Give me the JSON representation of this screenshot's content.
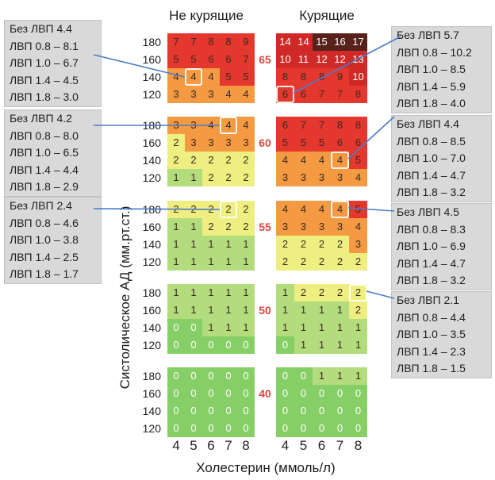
{
  "chart_data": {
    "type": "heatmap",
    "xlabel": "Холестерин (ммоль/л)",
    "ylabel": "Систолическое АД (мм.рт.ст.)",
    "x_ticks": [
      4,
      5,
      6,
      7,
      8
    ],
    "y_ticks": [
      180,
      160,
      140,
      120
    ],
    "ages": [
      65,
      60,
      55,
      50,
      40
    ],
    "color_scale": [
      {
        "min": 0,
        "max": 0,
        "color": "#86cf66"
      },
      {
        "min": 1,
        "max": 1,
        "color": "#b3dc7d"
      },
      {
        "min": 2,
        "max": 2,
        "color": "#eeef80"
      },
      {
        "min": 3,
        "max": 4,
        "color": "#f39a42"
      },
      {
        "min": 5,
        "max": 9,
        "color": "#e4372d"
      },
      {
        "min": 10,
        "max": 14,
        "color": "#cf2a27"
      },
      {
        "min": 15,
        "color": "#57211c"
      }
    ],
    "age_label_color": "#e2463b",
    "marker_color": "#ffffff",
    "connector_color": "#4a7cc7",
    "callout_fill": "#d9d9d9",
    "panels": [
      {
        "name": "Не курящие",
        "blocks": [
          [
            [
              7,
              7,
              8,
              8,
              9
            ],
            [
              5,
              5,
              6,
              6,
              7
            ],
            [
              4,
              4,
              4,
              5,
              5
            ],
            [
              3,
              3,
              3,
              4,
              4
            ]
          ],
          [
            [
              3,
              3,
              4,
              4,
              4
            ],
            [
              2,
              3,
              3,
              3,
              3
            ],
            [
              2,
              2,
              2,
              2,
              2
            ],
            [
              1,
              1,
              2,
              2,
              2
            ]
          ],
          [
            [
              2,
              2,
              2,
              2,
              2
            ],
            [
              1,
              1,
              2,
              2,
              2
            ],
            [
              1,
              1,
              1,
              1,
              1
            ],
            [
              1,
              1,
              1,
              1,
              1
            ]
          ],
          [
            [
              1,
              1,
              1,
              1,
              1
            ],
            [
              1,
              1,
              1,
              1,
              1
            ],
            [
              0,
              0,
              1,
              1,
              1
            ],
            [
              0,
              0,
              0,
              0,
              0
            ]
          ],
          [
            [
              0,
              0,
              0,
              0,
              0
            ],
            [
              0,
              0,
              0,
              0,
              0
            ],
            [
              0,
              0,
              0,
              0,
              0
            ],
            [
              0,
              0,
              0,
              0,
              0
            ]
          ]
        ],
        "callouts": [
          {
            "target": {
              "age": 65,
              "sbp": 140,
              "chol": 5
            },
            "lines": [
              "Без ЛВП 4.4",
              "ЛВП 0.8 – 8.1",
              "ЛВП 1.0 – 6.7",
              "ЛВП 1.4 – 4.5",
              "ЛВП 1.8 – 3.0"
            ]
          },
          {
            "target": {
              "age": 60,
              "sbp": 180,
              "chol": 7
            },
            "lines": [
              "Без ЛВП 4.2",
              "ЛВП 0.8 – 8.0",
              "ЛВП 1.0 – 6.5",
              "ЛВП 1.4 – 4.4",
              "ЛВП 1.8 – 2.9"
            ]
          },
          {
            "target": {
              "age": 55,
              "sbp": 180,
              "chol": 7
            },
            "lines": [
              "Без ЛВП 2.4",
              "ЛВП 0.8 – 4.6",
              "ЛВП 1.0 – 3.8",
              "ЛВП 1.4 – 2.5",
              "ЛВП 1.8 – 1.7"
            ]
          }
        ]
      },
      {
        "name": "Курящие",
        "blocks": [
          [
            [
              14,
              14,
              15,
              16,
              17
            ],
            [
              10,
              11,
              12,
              12,
              13
            ],
            [
              8,
              8,
              8,
              9,
              10
            ],
            [
              6,
              6,
              7,
              7,
              8
            ]
          ],
          [
            [
              6,
              7,
              7,
              8,
              8
            ],
            [
              5,
              5,
              5,
              6,
              6
            ],
            [
              4,
              4,
              4,
              4,
              5
            ],
            [
              3,
              3,
              3,
              3,
              4
            ]
          ],
          [
            [
              4,
              4,
              4,
              4,
              5
            ],
            [
              3,
              3,
              3,
              3,
              4
            ],
            [
              2,
              2,
              2,
              2,
              3
            ],
            [
              2,
              2,
              2,
              2,
              2
            ]
          ],
          [
            [
              1,
              2,
              2,
              2,
              2
            ],
            [
              1,
              1,
              1,
              1,
              2
            ],
            [
              1,
              1,
              1,
              1,
              1
            ],
            [
              0,
              1,
              1,
              1,
              1
            ]
          ],
          [
            [
              0,
              0,
              1,
              1,
              1
            ],
            [
              0,
              0,
              0,
              0,
              0
            ],
            [
              0,
              0,
              0,
              0,
              0
            ],
            [
              0,
              0,
              0,
              0,
              0
            ]
          ]
        ],
        "callouts": [
          {
            "target": {
              "age": 65,
              "sbp": 120,
              "chol": 4
            },
            "lines": [
              "Без ЛВП 5.7",
              "ЛВП 0.8 – 10.2",
              "ЛВП 1.0 – 8.5",
              "ЛВП 1.4 – 5.9",
              "ЛВП 1.8 – 4.0"
            ]
          },
          {
            "target": {
              "age": 60,
              "sbp": 140,
              "chol": 7
            },
            "lines": [
              "Без ЛВП 4.4",
              "ЛВП 0.8 – 8.5",
              "ЛВП 1.0 – 7.0",
              "ЛВП 1.4 – 4.7",
              "ЛВП 1.8 – 3.2"
            ]
          },
          {
            "target": {
              "age": 55,
              "sbp": 180,
              "chol": 7
            },
            "lines": [
              "Без ЛВП 4.5",
              "ЛВП 0.8 – 8.3",
              "ЛВП 1.0 – 6.9",
              "ЛВП 1.4 – 4.7",
              "ЛВП 1.8 – 3.2"
            ]
          },
          {
            "target": {
              "age": 50,
              "sbp": 180,
              "chol": 8
            },
            "lines": [
              "Без ЛВП 2.1",
              "ЛВП 0.8 – 4.4",
              "ЛВП 1.0 – 3.5",
              "ЛВП 1.4 – 2.3",
              "ЛВП 1.8 – 1.5"
            ]
          }
        ]
      }
    ]
  }
}
